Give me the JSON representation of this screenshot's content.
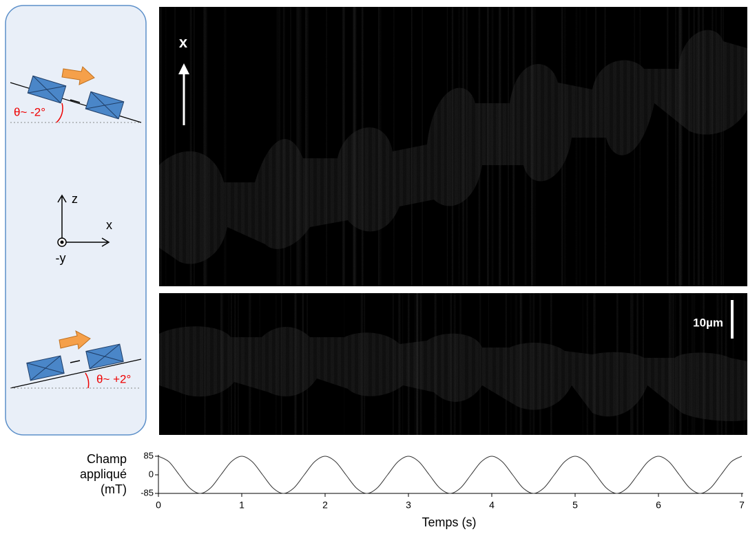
{
  "chart_data": {
    "type": "line",
    "xlabel": "Temps (s)",
    "ylabel": [
      "Champ",
      "appliqué",
      "(mT)"
    ],
    "annotations": {
      "image_axis": "x",
      "scale_bar": "10µm",
      "angle_top": "θ~ -2°",
      "angle_bottom": "θ~ +2°",
      "axis_z": "z",
      "axis_x": "x",
      "axis_y": "-y"
    },
    "x": [
      0,
      0.125,
      0.25,
      0.375,
      0.5,
      0.625,
      0.75,
      0.875,
      1,
      1.125,
      1.25,
      1.375,
      1.5,
      1.625,
      1.75,
      1.875,
      2,
      2.125,
      2.25,
      2.375,
      2.5,
      2.625,
      2.75,
      2.875,
      3,
      3.125,
      3.25,
      3.375,
      3.5,
      3.625,
      3.75,
      3.875,
      4,
      4.125,
      4.25,
      4.375,
      4.5,
      4.625,
      4.75,
      4.875,
      5,
      5.125,
      5.25,
      5.375,
      5.5,
      5.625,
      5.75,
      5.875,
      6,
      6.125,
      6.25,
      6.375,
      6.5,
      6.625,
      6.75,
      6.875,
      7
    ],
    "values": [
      85,
      60.1,
      0,
      -60.1,
      -85,
      -60.1,
      0,
      60.1,
      85,
      60.1,
      0,
      -60.1,
      -85,
      -60.1,
      0,
      60.1,
      85,
      60.1,
      0,
      -60.1,
      -85,
      -60.1,
      0,
      60.1,
      85,
      60.1,
      0,
      -60.1,
      -85,
      -60.1,
      0,
      60.1,
      85,
      60.1,
      0,
      -60.1,
      -85,
      -60.1,
      0,
      60.1,
      85,
      60.1,
      0,
      -60.1,
      -85,
      -60.1,
      0,
      60.1,
      85,
      60.1,
      0,
      -60.1,
      -85,
      -60.1,
      0,
      60.1,
      85
    ],
    "color": "#333333",
    "xlim": [
      0,
      7
    ],
    "xticks": [
      0,
      1,
      2,
      3,
      4,
      5,
      6,
      7
    ],
    "ylim": [
      -85,
      85
    ],
    "yticks": [
      -85,
      0,
      85
    ]
  }
}
